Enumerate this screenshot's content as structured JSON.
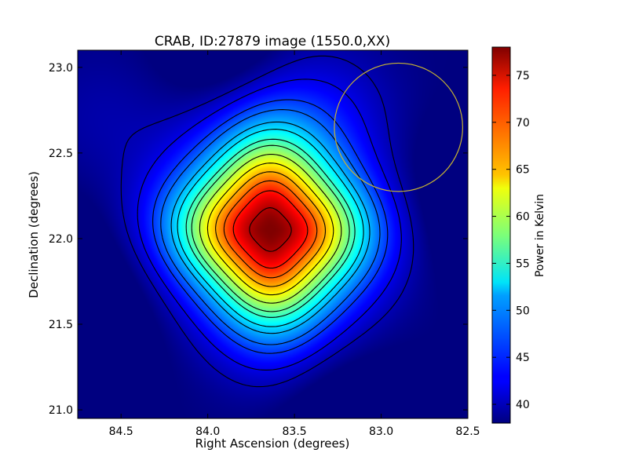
{
  "chart_data": {
    "type": "heatmap",
    "title": "CRAB, ID:27879 image (1550.0,XX)",
    "xlabel": "Right Ascension (degrees)",
    "ylabel": "Declination (degrees)",
    "xlim": [
      84.75,
      82.5
    ],
    "ylim": [
      20.95,
      23.1
    ],
    "x_inverted": true,
    "xticks": [
      {
        "value": 84.5,
        "label": "84.5"
      },
      {
        "value": 84.0,
        "label": "84.0"
      },
      {
        "value": 83.5,
        "label": "83.5"
      },
      {
        "value": 83.0,
        "label": "83.0"
      },
      {
        "value": 82.5,
        "label": "82.5"
      }
    ],
    "yticks": [
      {
        "value": 21.0,
        "label": "21.0"
      },
      {
        "value": 21.5,
        "label": "21.5"
      },
      {
        "value": 22.0,
        "label": "22.0"
      },
      {
        "value": 22.5,
        "label": "22.5"
      },
      {
        "value": 23.0,
        "label": "23.0"
      }
    ],
    "colorbar": {
      "label": "Power in Kelvin",
      "colormap": "jet",
      "range": [
        38,
        78
      ],
      "ticks": [
        {
          "value": 40,
          "label": "40"
        },
        {
          "value": 45,
          "label": "45"
        },
        {
          "value": 50,
          "label": "50"
        },
        {
          "value": 55,
          "label": "55"
        },
        {
          "value": 60,
          "label": "60"
        },
        {
          "value": 65,
          "label": "65"
        },
        {
          "value": 70,
          "label": "70"
        },
        {
          "value": 75,
          "label": "75"
        }
      ]
    },
    "peak": {
      "ra": 83.64,
      "dec": 22.05,
      "value": 78
    },
    "background_level": 38,
    "contour_levels": [
      40,
      42,
      45,
      47,
      50,
      52,
      55,
      57,
      60,
      63,
      66,
      69,
      72,
      76
    ],
    "contour_color": "#000000",
    "beam_circle": {
      "ra": 82.9,
      "dec": 22.65,
      "radius_deg": 0.37,
      "color": "#c8b432"
    }
  }
}
